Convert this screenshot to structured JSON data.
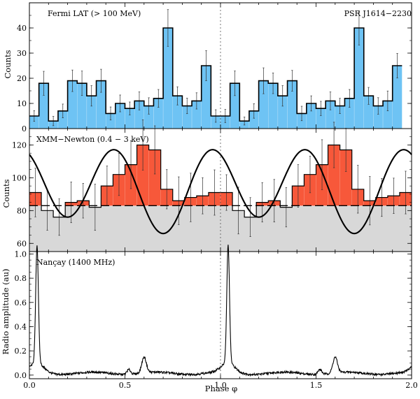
{
  "chart_data": [
    {
      "type": "bar",
      "panel": "top",
      "label": "Fermi LAT (> 100 MeV)",
      "label_right": "PSR J1614−2230",
      "ylabel": "Counts",
      "ylim": [
        0,
        50
      ],
      "yticks": [
        "0",
        "10",
        "20",
        "30",
        "40"
      ],
      "bin_width": 0.05,
      "values": [
        5,
        18,
        3,
        7,
        19,
        18,
        13,
        19,
        6,
        10,
        8,
        11,
        9,
        12,
        40,
        13,
        9,
        11,
        25,
        5,
        5,
        18,
        3,
        7,
        19,
        18,
        13,
        19,
        6,
        10,
        8,
        11,
        9,
        12,
        40,
        13,
        9,
        11,
        25
      ],
      "fill_color": "#6ec3f4",
      "line_color": "#000000",
      "error_bars": true
    },
    {
      "type": "bar",
      "panel": "middle",
      "label": "XMM−Newton (0.4 − 3 keV)",
      "ylabel": "Counts",
      "ylim": [
        55,
        130
      ],
      "yticks": [
        "60",
        "80",
        "100",
        "120"
      ],
      "bin_width": 0.0625,
      "values": [
        91,
        80,
        76,
        85,
        86,
        82,
        95,
        102,
        108,
        120,
        117,
        93,
        86,
        88,
        89,
        91,
        91,
        80,
        76,
        85,
        86,
        82,
        95,
        102,
        108,
        120,
        117,
        93,
        86,
        88,
        89,
        91
      ],
      "background_level": 83,
      "model_curve": {
        "mean": 94,
        "amp_fundamental": -5,
        "amp_second_harmonic": -23,
        "phase_peak": 0.7
      },
      "excess_color": "#f7583a",
      "background_color": "#d8d8d8",
      "error_bars": true
    },
    {
      "type": "line",
      "panel": "bottom",
      "label": "Nançay (1400 MHz)",
      "ylabel": "Radio amplitude (au)",
      "xlabel": "Phase φ",
      "ylim": [
        -0.03,
        1.02
      ],
      "yticks": [
        "0.0",
        "0.2",
        "0.4",
        "0.6",
        "0.8",
        "1.0"
      ],
      "xlim": [
        0,
        2
      ],
      "xticks": [
        "0.0",
        "0.5",
        "1.0",
        "1.5",
        "2.0"
      ],
      "main_peak_phase": 0.04,
      "secondary_peak_phase": 0.6,
      "secondary_peak_amplitude": 0.13,
      "line_color": "#000000"
    }
  ],
  "reference_line_phase": 1.0
}
